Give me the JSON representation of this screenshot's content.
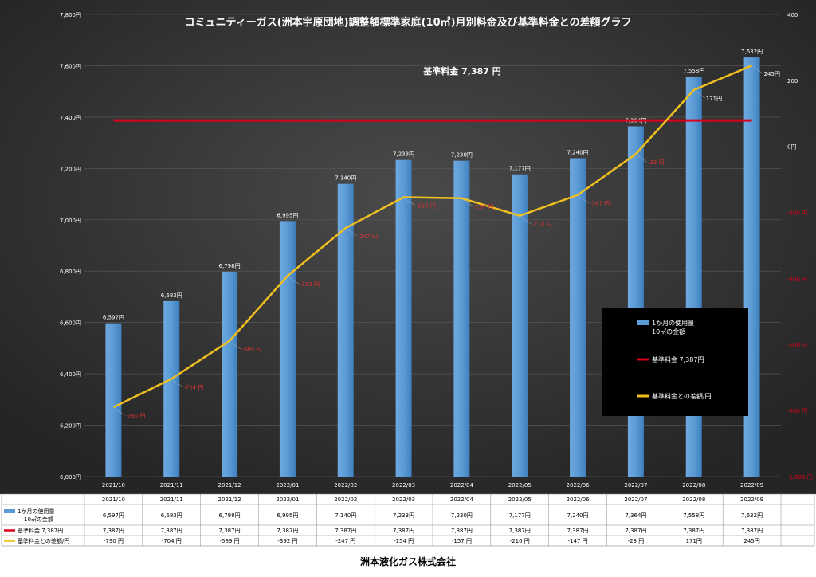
{
  "chart_data": {
    "type": "bar",
    "title": "コミュニティーガス(洲本宇原団地)調整額標準家庭(10㎥)月別料金及び基準料金との差額グラフ",
    "baseline_annotation": "基準料金  7,387  円",
    "categories": [
      "2021/10",
      "2021/11",
      "2021/12",
      "2022/01",
      "2022/02",
      "2022/03",
      "2022/04",
      "2022/05",
      "2022/06",
      "2022/07",
      "2022/08",
      "2022/09"
    ],
    "series": [
      {
        "name": "1か月の使用量\n10㎥の金額",
        "type": "bar",
        "axis": "left",
        "color": "#5b9bd5",
        "values": [
          6597,
          6683,
          6798,
          6995,
          7140,
          7233,
          7230,
          7177,
          7240,
          7364,
          7558,
          7632
        ],
        "labels": [
          "6,597円",
          "6,683円",
          "6,798円",
          "6,995円",
          "7,140円",
          "7,233円",
          "7,230円",
          "7,177円",
          "7,240円",
          "7,364円",
          "7,558円",
          "7,632円"
        ]
      },
      {
        "name": "基準料金  7,387円",
        "type": "line",
        "axis": "left",
        "color": "#d9001b",
        "values": [
          7387,
          7387,
          7387,
          7387,
          7387,
          7387,
          7387,
          7387,
          7387,
          7387,
          7387,
          7387
        ],
        "labels": [
          "7,387円",
          "7,387円",
          "7,387円",
          "7,387円",
          "7,387円",
          "7,387円",
          "7,387円",
          "7,387円",
          "7,387円",
          "7,387円",
          "7,387円",
          "7,387円"
        ]
      },
      {
        "name": "基準料金との差額/円",
        "type": "line",
        "axis": "right",
        "color": "#f0c020",
        "values": [
          -790,
          -704,
          -589,
          -392,
          -247,
          -154,
          -157,
          -210,
          -147,
          -23,
          171,
          245
        ],
        "labels": [
          "-790 円",
          "-704 円",
          "-589 円",
          "-392 円",
          "-247 円",
          "-154 円",
          "-157 円",
          "-210 円",
          "-147 円",
          "-23 円",
          "171円",
          "245円"
        ]
      }
    ],
    "left_axis": {
      "min": 6000,
      "max": 7800,
      "ticks": [
        {
          "v": 6000,
          "label": "6,000円"
        },
        {
          "v": 6200,
          "label": "6,200円"
        },
        {
          "v": 6400,
          "label": "6,400円"
        },
        {
          "v": 6600,
          "label": "6,600円"
        },
        {
          "v": 6800,
          "label": "6,800円"
        },
        {
          "v": 7000,
          "label": "7,000円"
        },
        {
          "v": 7200,
          "label": "7,200円"
        },
        {
          "v": 7400,
          "label": "7,400円"
        },
        {
          "v": 7600,
          "label": "7,600円"
        },
        {
          "v": 7800,
          "label": "7,800円"
        }
      ]
    },
    "right_axis": {
      "min": -1000,
      "max": 400,
      "ticks": [
        {
          "v": 400,
          "label": "400",
          "color": "#ffffff"
        },
        {
          "v": 200,
          "label": "200",
          "color": "#ffffff"
        },
        {
          "v": 0,
          "label": "0円",
          "color": "#ffffff"
        },
        {
          "v": -200,
          "label": "-200 円",
          "color": "#d9001b"
        },
        {
          "v": -400,
          "label": "-400 円",
          "color": "#d9001b"
        },
        {
          "v": -600,
          "label": "-600 円",
          "color": "#d9001b"
        },
        {
          "v": -800,
          "label": "-800 円",
          "color": "#d9001b"
        },
        {
          "v": -1000,
          "label": "-1,000 円",
          "color": "#d9001b"
        }
      ]
    },
    "legend_position": "right",
    "grid": true
  },
  "footer": {
    "company": "洲本液化ガス株式会社"
  },
  "colors": {
    "background_dark": "#2e2e2e",
    "background_light": "#4a4a4a",
    "bar": "#5b9bd5",
    "baseline": "#d9001b",
    "diff_line": "#f0c020",
    "negative_label": "#e03030"
  }
}
